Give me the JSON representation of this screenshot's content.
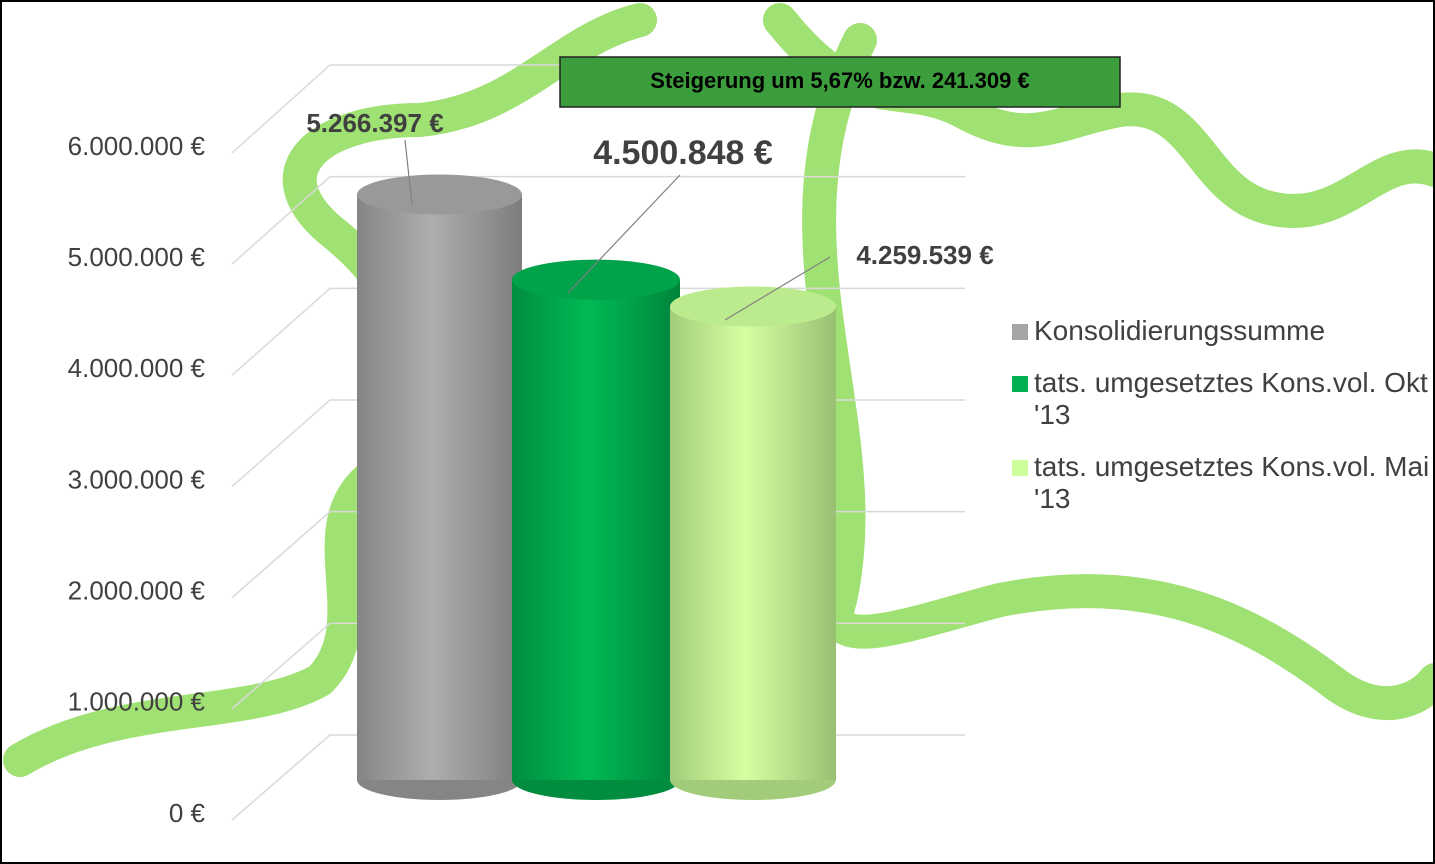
{
  "chart_data": {
    "type": "bar",
    "categories": [
      null
    ],
    "series": [
      {
        "name": "Konsolidierungssumme",
        "color": "#a6a6a6",
        "values": [
          5266397
        ],
        "value_labels": [
          "5.266.397 €"
        ]
      },
      {
        "name": "tats. umgesetztes Kons.vol. Okt '13",
        "color": "#00b050",
        "values": [
          4500848
        ],
        "value_labels": [
          "4.500.848 €"
        ]
      },
      {
        "name": "tats. umgesetztes Kons.vol. Mai '13",
        "color": "#ccff99",
        "values": [
          4259539
        ],
        "value_labels": [
          "4.259.539 €"
        ]
      }
    ],
    "annotation": "Steigerung um 5,67% bzw. 241.309 €",
    "ylim": [
      0,
      6000000
    ],
    "yticks": [
      {
        "value": 0,
        "label": "0 €"
      },
      {
        "value": 1000000,
        "label": "1.000.000 €"
      },
      {
        "value": 2000000,
        "label": "2.000.000 €"
      },
      {
        "value": 3000000,
        "label": "3.000.000 €"
      },
      {
        "value": 4000000,
        "label": "4.000.000 €"
      },
      {
        "value": 5000000,
        "label": "5.000.000 €"
      },
      {
        "value": 6000000,
        "label": "6.000.000 €"
      }
    ],
    "grid": true,
    "legend": "right"
  }
}
